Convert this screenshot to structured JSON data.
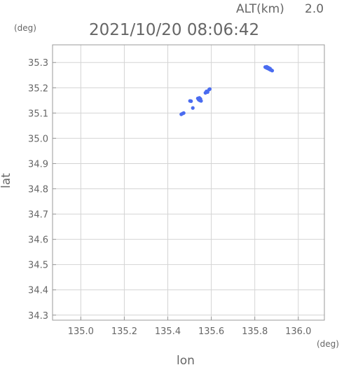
{
  "chart_data": {
    "type": "scatter",
    "header_label": "ALT(km)",
    "header_value": "2.0",
    "title": "2021/10/20 08:06:42",
    "xlabel": "lon",
    "ylabel": "lat",
    "x_unit": "(deg)",
    "y_unit": "(deg)",
    "xlim": [
      134.87,
      136.12
    ],
    "ylim": [
      34.28,
      35.37
    ],
    "x_ticks": [
      135.0,
      135.2,
      135.4,
      135.6,
      135.8,
      136.0
    ],
    "x_tick_labels": [
      "135.0",
      "135.2",
      "135.4",
      "135.6",
      "135.8",
      "136.0"
    ],
    "y_ticks": [
      34.3,
      34.4,
      34.5,
      34.6,
      34.7,
      34.8,
      34.9,
      35.0,
      35.1,
      35.2,
      35.3
    ],
    "y_tick_labels": [
      "34.3",
      "34.4",
      "34.5",
      "34.6",
      "34.7",
      "34.8",
      "34.9",
      "35.0",
      "35.1",
      "35.2",
      "35.3"
    ],
    "grid": true,
    "point_color": "#4a6cf0",
    "points": [
      [
        135.462,
        35.095
      ],
      [
        135.468,
        35.098
      ],
      [
        135.473,
        35.1
      ],
      [
        135.502,
        35.148
      ],
      [
        135.507,
        35.147
      ],
      [
        135.515,
        35.12
      ],
      [
        135.538,
        35.158
      ],
      [
        135.542,
        35.153
      ],
      [
        135.547,
        35.15
      ],
      [
        135.55,
        35.156
      ],
      [
        135.553,
        35.148
      ],
      [
        135.545,
        35.16
      ],
      [
        135.573,
        35.18
      ],
      [
        135.578,
        35.186
      ],
      [
        135.583,
        35.183
      ],
      [
        135.59,
        35.193
      ],
      [
        135.593,
        35.195
      ],
      [
        135.848,
        35.282
      ],
      [
        135.852,
        35.28
      ],
      [
        135.856,
        35.278
      ],
      [
        135.86,
        35.277
      ],
      [
        135.864,
        35.275
      ],
      [
        135.868,
        35.273
      ],
      [
        135.872,
        35.271
      ],
      [
        135.876,
        35.27
      ],
      [
        135.88,
        35.268
      ],
      [
        135.855,
        35.283
      ],
      [
        135.862,
        35.28
      ],
      [
        135.87,
        35.276
      ]
    ]
  }
}
